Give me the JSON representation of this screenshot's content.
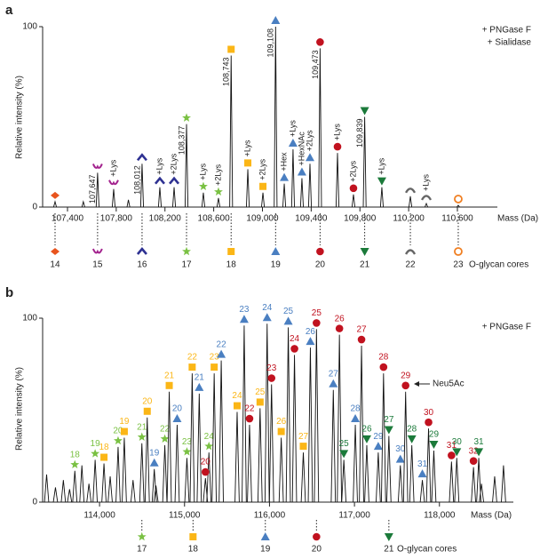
{
  "chart_data": [
    {
      "type": "spectrum",
      "panel": "a",
      "y_label": "Relative intensity (%)",
      "x_label": "Mass (Da)",
      "annotations": [
        "+ PNGase F",
        "+ Sialidase"
      ],
      "cores_label": "O-glycan cores",
      "xlim": [
        107196,
        110928
      ],
      "ylim": [
        0,
        100
      ],
      "xticks": [
        {
          "value": 107400,
          "label": "107,400"
        },
        {
          "value": 107800,
          "label": "107,800"
        },
        {
          "value": 108200,
          "label": "108,200"
        },
        {
          "value": 108600,
          "label": "108,600"
        },
        {
          "value": 109000,
          "label": "109,000"
        },
        {
          "value": 109400,
          "label": "109,400"
        },
        {
          "value": 109800,
          "label": "109,800"
        },
        {
          "value": 110200,
          "label": "110,200"
        },
        {
          "value": 110600,
          "label": "110,600"
        }
      ],
      "yticks": [
        0,
        100
      ],
      "peaks": [
        {
          "x": 107298,
          "value": 3,
          "symbol": "diamond",
          "color": "#e8541e"
        },
        {
          "x": 107530,
          "value": 3
        },
        {
          "x": 107647,
          "value": 19,
          "label": "107,647",
          "symbol": "moustache",
          "color": "#a3238e"
        },
        {
          "x": 107779,
          "value": 10,
          "label": "+Lys",
          "symbol": "moustache",
          "color": "#a3238e"
        },
        {
          "x": 107900,
          "value": 4
        },
        {
          "x": 108012,
          "value": 24,
          "label": "108,012",
          "symbol": "chevron",
          "color": "#2e3192"
        },
        {
          "x": 108158,
          "value": 11,
          "label": "+Lys",
          "symbol": "chevron",
          "color": "#2e3192"
        },
        {
          "x": 108275,
          "value": 11,
          "label": "+2Lys",
          "symbol": "chevron",
          "color": "#2e3192"
        },
        {
          "x": 108377,
          "value": 46,
          "label": "108,377",
          "symbol": "star",
          "color": "#7ac143"
        },
        {
          "x": 108515,
          "value": 8,
          "label": "+Lys",
          "symbol": "star",
          "color": "#7ac143"
        },
        {
          "x": 108639,
          "value": 5,
          "label": "+2Lys",
          "symbol": "star",
          "color": "#7ac143"
        },
        {
          "x": 108743,
          "value": 84,
          "label": "108,743",
          "symbol": "square",
          "color": "#fbb616"
        },
        {
          "x": 108880,
          "value": 21,
          "label": "+Lys",
          "symbol": "square",
          "color": "#fbb616"
        },
        {
          "x": 109004,
          "value": 8,
          "label": "+2Lys",
          "symbol": "square",
          "color": "#fbb616"
        },
        {
          "x": 109108,
          "value": 100,
          "label": "109,108",
          "symbol": "triangle",
          "color": "#4a7fc1"
        },
        {
          "x": 109179,
          "value": 13,
          "label": "+Hex",
          "symbol": "triangle",
          "color": "#4a7fc1"
        },
        {
          "x": 109251,
          "value": 32,
          "label": "+Lys",
          "symbol": "triangle",
          "color": "#4a7fc1"
        },
        {
          "x": 109324,
          "value": 16,
          "label": "+HexNAc",
          "symbol": "triangle",
          "color": "#4a7fc1"
        },
        {
          "x": 109390,
          "value": 24,
          "label": "+2Lys",
          "symbol": "triangle",
          "color": "#4a7fc1"
        },
        {
          "x": 109473,
          "value": 88,
          "label": "109,473",
          "symbol": "circle",
          "color": "#c1121f"
        },
        {
          "x": 109616,
          "value": 30,
          "label": "+Lys",
          "symbol": "circle",
          "color": "#c1121f"
        },
        {
          "x": 109747,
          "value": 7,
          "label": "+2Lys",
          "symbol": "circle",
          "color": "#c1121f"
        },
        {
          "x": 109839,
          "value": 50,
          "label": "109,839",
          "symbol": "down",
          "color": "#1b7a3a"
        },
        {
          "x": 109980,
          "value": 11,
          "label": "+Lys",
          "symbol": "down",
          "color": "#1b7a3a"
        },
        {
          "x": 110214,
          "value": 6,
          "symbol": "arc",
          "color": "#666666"
        },
        {
          "x": 110345,
          "value": 2,
          "label": "+Lys",
          "symbol": "arc",
          "color": "#666666"
        },
        {
          "x": 110607,
          "value": 1,
          "symbol": "ring",
          "color": "#f07f22"
        }
      ],
      "cores": [
        {
          "label": 14,
          "x": 107298,
          "symbol": "diamond",
          "color": "#e8541e"
        },
        {
          "label": 15,
          "x": 107647,
          "symbol": "moustache",
          "color": "#a3238e"
        },
        {
          "label": 16,
          "x": 108012,
          "symbol": "chevron",
          "color": "#2e3192"
        },
        {
          "label": 17,
          "x": 108377,
          "symbol": "star",
          "color": "#7ac143"
        },
        {
          "label": 18,
          "x": 108743,
          "symbol": "square",
          "color": "#fbb616"
        },
        {
          "label": 19,
          "x": 109108,
          "symbol": "triangle",
          "color": "#4a7fc1"
        },
        {
          "label": 20,
          "x": 109473,
          "symbol": "circle",
          "color": "#c1121f"
        },
        {
          "label": 21,
          "x": 109839,
          "symbol": "down",
          "color": "#1b7a3a"
        },
        {
          "label": 22,
          "x": 110214,
          "symbol": "arc",
          "color": "#666666"
        },
        {
          "label": 23,
          "x": 110607,
          "symbol": "ring",
          "color": "#f07f22"
        }
      ]
    },
    {
      "type": "spectrum-series",
      "panel": "b",
      "y_label": "Relative intensity (%)",
      "x_label": "Mass (Da)",
      "annotations": [
        "+ PNGase F"
      ],
      "cores_label": "O-glycan cores",
      "callout": "Neu5Ac",
      "xlim": [
        113330,
        118870
      ],
      "ylim": [
        0,
        100
      ],
      "xticks": [
        {
          "value": 114000,
          "label": "114,000"
        },
        {
          "value": 115000,
          "label": "115,000"
        },
        {
          "value": 116000,
          "label": "116,000"
        },
        {
          "value": 117000,
          "label": "117,000"
        },
        {
          "value": 118000,
          "label": "118,000"
        }
      ],
      "yticks": [
        0,
        100
      ],
      "other_peaks": {
        "x": [
          113377,
          113481,
          113574,
          113647,
          113792,
          113875,
          114125,
          114394,
          114664,
          118495,
          118650,
          118754
        ],
        "values": [
          15,
          8,
          12,
          7,
          20,
          10,
          14,
          12,
          9,
          10,
          14,
          20
        ]
      },
      "series": [
        {
          "symbol": "star",
          "color": "#7ac143",
          "labels": [
            18,
            19,
            20,
            21,
            22,
            23,
            24
          ],
          "x": [
            113709,
            113948,
            114218,
            114498,
            114768,
            115028,
            115287
          ],
          "values": [
            17,
            23,
            30,
            32,
            31,
            24,
            27
          ]
        },
        {
          "symbol": "square",
          "color": "#fbb616",
          "labels": [
            18,
            19,
            20,
            21,
            22,
            23,
            24,
            25,
            26,
            27
          ],
          "x": [
            114052,
            114291,
            114561,
            114820,
            115090,
            115349,
            115619,
            115889,
            116138,
            116398
          ],
          "values": [
            21,
            35,
            46,
            60,
            70,
            70,
            49,
            51,
            35,
            27
          ]
        },
        {
          "symbol": "triangle",
          "color": "#4a7fc1",
          "labels": [
            19,
            20,
            21,
            22,
            23,
            24,
            25,
            26,
            27,
            28,
            29,
            30,
            31
          ],
          "x": [
            114644,
            114913,
            115173,
            115432,
            115702,
            115972,
            116221,
            116481,
            116751,
            117010,
            117280,
            117540,
            117799
          ],
          "values": [
            18,
            42,
            59,
            77,
            96,
            97,
            95,
            84,
            61,
            42,
            27,
            20,
            12
          ]
        },
        {
          "symbol": "circle",
          "color": "#c1121f",
          "labels": [
            20,
            22,
            23,
            24,
            25,
            26,
            27,
            28,
            29,
            30,
            31,
            32
          ],
          "x": [
            115246,
            115765,
            116024,
            116294,
            116553,
            116823,
            117083,
            117342,
            117602,
            117872,
            118142,
            118401
          ],
          "values": [
            13,
            42,
            64,
            80,
            94,
            91,
            85,
            70,
            60,
            40,
            22,
            19
          ]
        },
        {
          "symbol": "down",
          "color": "#1b7a3a",
          "labels": [
            25,
            26,
            27,
            28,
            29,
            30,
            31
          ],
          "x": [
            116875,
            117145,
            117405,
            117675,
            117934,
            118204,
            118463
          ],
          "values": [
            23,
            31,
            36,
            31,
            28,
            24,
            24
          ]
        }
      ],
      "cores": [
        {
          "label": 17,
          "x": 114498,
          "symbol": "star",
          "color": "#7ac143"
        },
        {
          "label": 18,
          "x": 115100,
          "symbol": "square",
          "color": "#fbb616"
        },
        {
          "label": 19,
          "x": 115951,
          "symbol": "triangle",
          "color": "#4a7fc1"
        },
        {
          "label": 20,
          "x": 116553,
          "symbol": "circle",
          "color": "#c1121f"
        },
        {
          "label": 21,
          "x": 117405,
          "symbol": "down",
          "color": "#1b7a3a"
        }
      ]
    }
  ]
}
